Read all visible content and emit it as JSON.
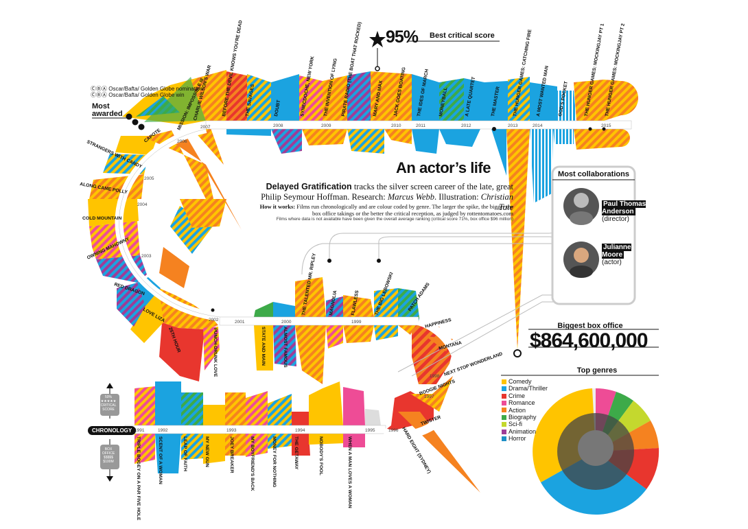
{
  "title": "An actor’s life",
  "intro": {
    "brand": "Delayed Gratification",
    "text": " tracks the silver screen career of the late, great Philip Seymour Hoffman. Research: ",
    "research": "Marcus Webb",
    "illus_label": ". Illustration: ",
    "illustration": "Christian Tate",
    "howto_label": "How it works:",
    "howto_text": " Films run chronologically and are colour coded by genre. The larger the spike, the bigger the box office takings or the better the critical reception, as judged by rottentomatoes.com",
    "na_note": "Films where data is not available have been given the overall average ranking (critical score 71%, box office $96 million)"
  },
  "awards_legend": {
    "nomination": "Oscar/Bafta/ Golden Globe nomination",
    "win": "Oscar/Bafta/ Golden Globe win",
    "most_awarded": "Most awarded",
    "nom_symbols": "ⒸⒷⒶ",
    "win_symbols": "ⒸⒷⒶ"
  },
  "best_score": {
    "value": "95%",
    "label": "Best critical score"
  },
  "most_collaborations": {
    "title": "Most collaborations",
    "people": [
      {
        "name": "Paul Thomas Anderson",
        "role": "(director)"
      },
      {
        "name": "Julianne Moore",
        "role": "(actor)"
      }
    ]
  },
  "biggest_box_office": {
    "title": "Biggest box office",
    "value": "$864,600,000"
  },
  "top_genres": {
    "title": "Top genres",
    "items": [
      {
        "name": "Comedy",
        "color": "#FFC400"
      },
      {
        "name": "Drama/Thriller",
        "color": "#1BA3E0"
      },
      {
        "name": "Crime",
        "color": "#E8362E"
      },
      {
        "name": "Romance",
        "color": "#EE4C96"
      },
      {
        "name": "Action",
        "color": "#F58220"
      },
      {
        "name": "Biography",
        "color": "#3DAA49"
      },
      {
        "name": "Sci-fi",
        "color": "#C4D82E"
      },
      {
        "name": "Animation",
        "color": "#9E3D97"
      },
      {
        "name": "Horror",
        "color": "#1E8FC6"
      }
    ]
  },
  "axis_key": {
    "score": "50% ★★★★★ CRITICAL SCORE",
    "box": "BOX OFFICE $$$$$ $100M",
    "chronology": "CHRONOLOGY"
  },
  "years": [
    "1991",
    "1992",
    "1993",
    "1994",
    "1995",
    "1996",
    "1997",
    "1998",
    "1999",
    "2000",
    "2001",
    "2002",
    "2003",
    "2004",
    "2005",
    "2006",
    "2007",
    "2008",
    "2009",
    "2010",
    "2011",
    "2012",
    "2013",
    "2014",
    "2015"
  ],
  "films": [
    "TRIPLE BOGEY ON A PAR FIVE HOLE",
    "SCENT OF A WOMAN",
    "LEAP OF FAITH",
    "MY NEW GUN",
    "JOEY BREAKER",
    "MY BOYFRIEND'S BACK",
    "MONEY FOR NOTHING",
    "THE GETAWAY",
    "NOBODY'S FOOL",
    "WHEN A MAN LOVES A WOMAN",
    "HARD EIGHT (SYDNEY)",
    "TWISTER",
    "BOOGIE NIGHTS",
    "NEXT STOP WONDERLAND",
    "MONTANA",
    "HAPPINESS",
    "PATCH ADAMS",
    "THE BIG LEBOWSKI",
    "FLAWLESS",
    "MAGNOLIA",
    "THE TALENTED MR. RIPLEY",
    "ALMOST FAMOUS",
    "STATE AND MAIN",
    "PUNCH-DRUNK LOVE",
    "25TH HOUR",
    "LOVE LIZA",
    "RED DRAGON",
    "OWNING MAHOWNY",
    "COLD MOUNTAIN",
    "ALONG CAME POLLY",
    "STRANGERS WITH CANDY",
    "CAPOTE",
    "MISSION: IMPOSSIBLE III",
    "CHARLIE WILSON'S WAR",
    "BEFORE THE DEVIL KNOWS YOU'RE DEAD",
    "THE SAVAGES",
    "DOUBT",
    "SYNECDOCHE, NEW YORK",
    "THE INVENTION OF LYING",
    "PIRATE RADIO (THE BOAT THAT ROCKED)",
    "MARY AND MAX",
    "JACK GOES BOATING",
    "THE IDES OF MARCH",
    "MONEYBALL",
    "A LATE QUARTET",
    "THE MASTER",
    "THE HUNGER GAMES: CATCHING FIRE",
    "A MOST WANTED MAN",
    "GOD'S POCKET",
    "THE HUNGER GAMES: MOCKINGJAY PT 1",
    "THE HUNGER GAMES: MOCKINGJAY PT 2"
  ]
}
